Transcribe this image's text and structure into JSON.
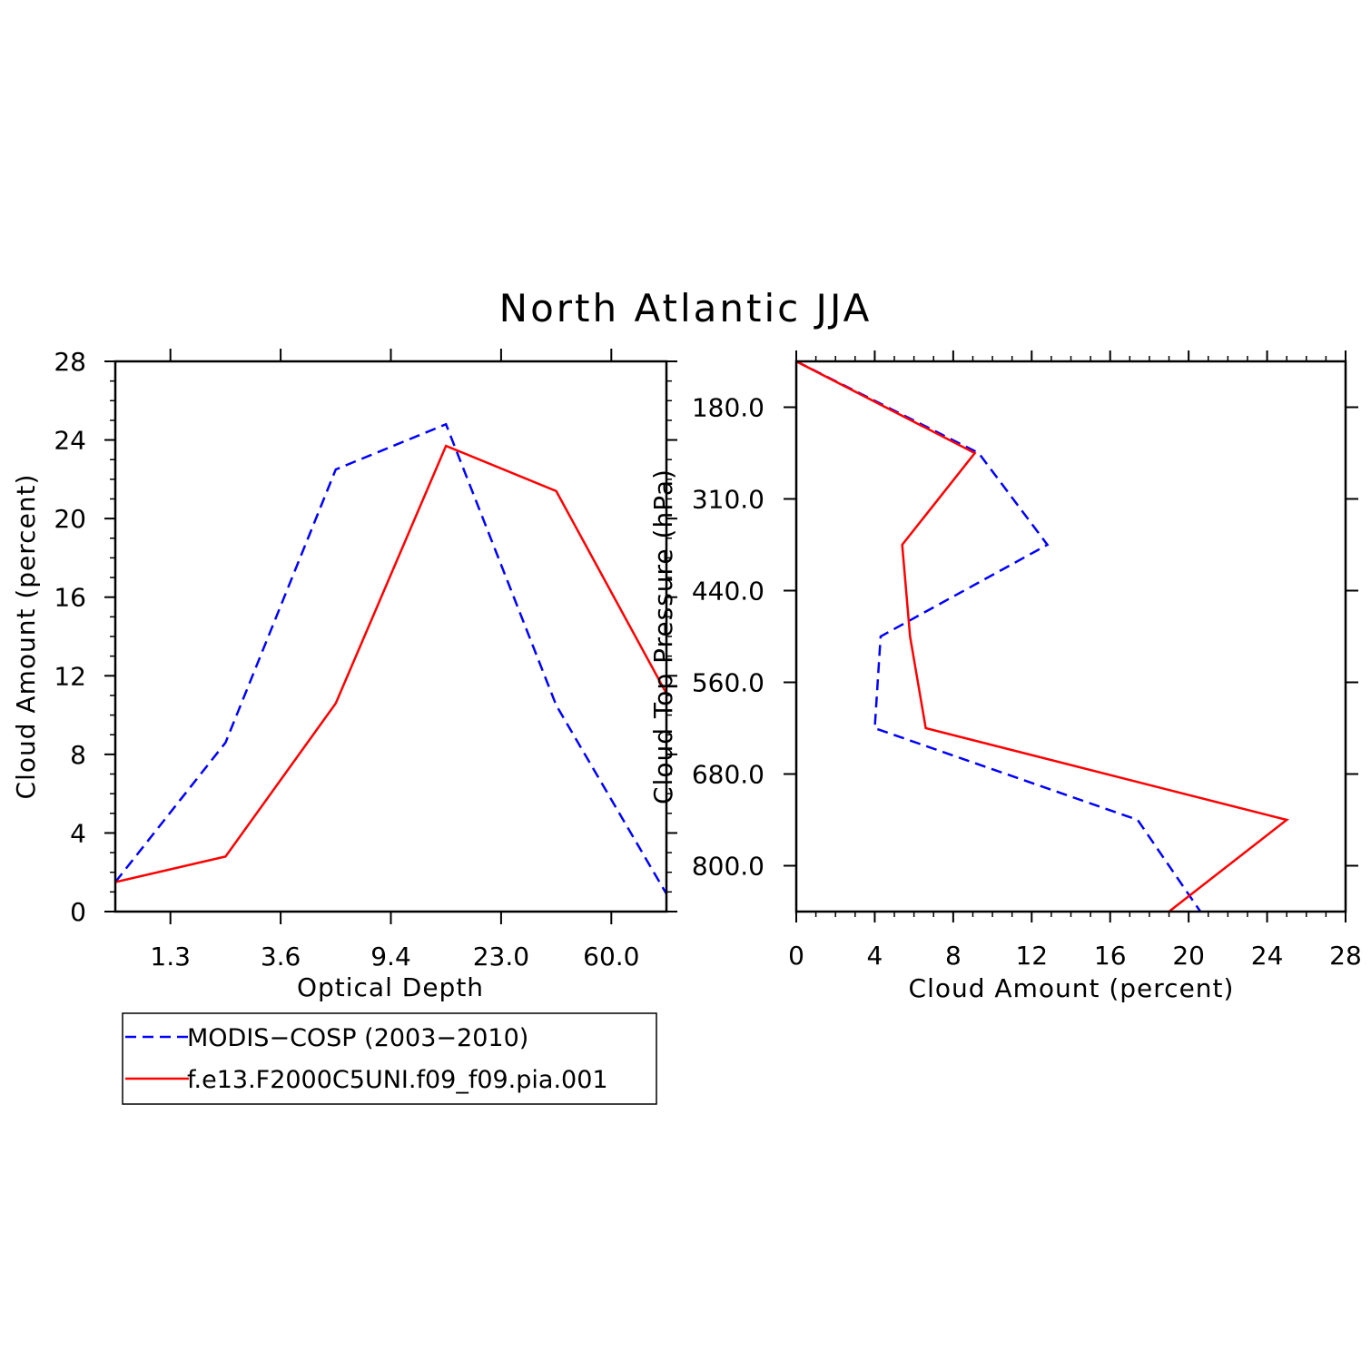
{
  "title": "North Atlantic JJA",
  "colors": {
    "series1": "#0000ff",
    "series2": "#ff0000",
    "axis": "#000000"
  },
  "legend": {
    "position": "bottom-left",
    "entries": [
      {
        "label": "MODIS−COSP (2003−2010)",
        "color": "#0000ff",
        "style": "dashed"
      },
      {
        "label": "f.e13.F2000C5UNI.f09_f09.pia.001",
        "color": "#ff0000",
        "style": "solid"
      }
    ]
  },
  "chart_data": [
    {
      "type": "line",
      "xlabel": "Optical Depth",
      "ylabel": "Cloud Amount (percent)",
      "x_tick_labels": [
        "1.3",
        "3.6",
        "9.4",
        "23.0",
        "60.0"
      ],
      "x_tick_index": [
        0.5,
        1.5,
        2.5,
        3.5,
        4.5
      ],
      "xlim_index": [
        0,
        5
      ],
      "x_index": [
        0,
        1,
        2,
        3,
        4,
        5
      ],
      "ylim": [
        0,
        28
      ],
      "y_ticks": [
        0,
        4,
        8,
        12,
        16,
        20,
        24,
        28
      ],
      "series": [
        {
          "name": "MODIS−COSP (2003−2010)",
          "values": [
            1.5,
            8.6,
            22.5,
            24.8,
            10.5,
            0.9
          ]
        },
        {
          "name": "f.e13.F2000C5UNI.f09_f09.pia.001",
          "values": [
            1.5,
            2.8,
            10.6,
            23.7,
            21.4,
            11.1
          ]
        }
      ]
    },
    {
      "type": "line",
      "orientation": "horizontal",
      "xlabel": "Cloud Amount (percent)",
      "ylabel": "Cloud Top Pressure (hPa)",
      "xlim": [
        0,
        28
      ],
      "x_ticks": [
        0,
        4,
        8,
        12,
        16,
        20,
        24,
        28
      ],
      "y_tick_labels": [
        "180.0",
        "310.0",
        "440.0",
        "560.0",
        "680.0",
        "800.0"
      ],
      "y_tick_index": [
        0.5,
        1.5,
        2.5,
        3.5,
        4.5,
        5.5
      ],
      "ylim_index": [
        0,
        6
      ],
      "y_index": [
        0,
        1,
        2,
        3,
        4,
        5,
        6
      ],
      "series": [
        {
          "name": "MODIS−COSP (2003−2010)",
          "values": [
            0.0,
            9.3,
            12.8,
            4.3,
            4.0,
            17.4,
            20.6
          ]
        },
        {
          "name": "f.e13.F2000C5UNI.f09_f09.pia.001",
          "values": [
            0.0,
            9.1,
            5.4,
            5.8,
            6.6,
            25.0,
            19.0
          ]
        }
      ]
    }
  ]
}
